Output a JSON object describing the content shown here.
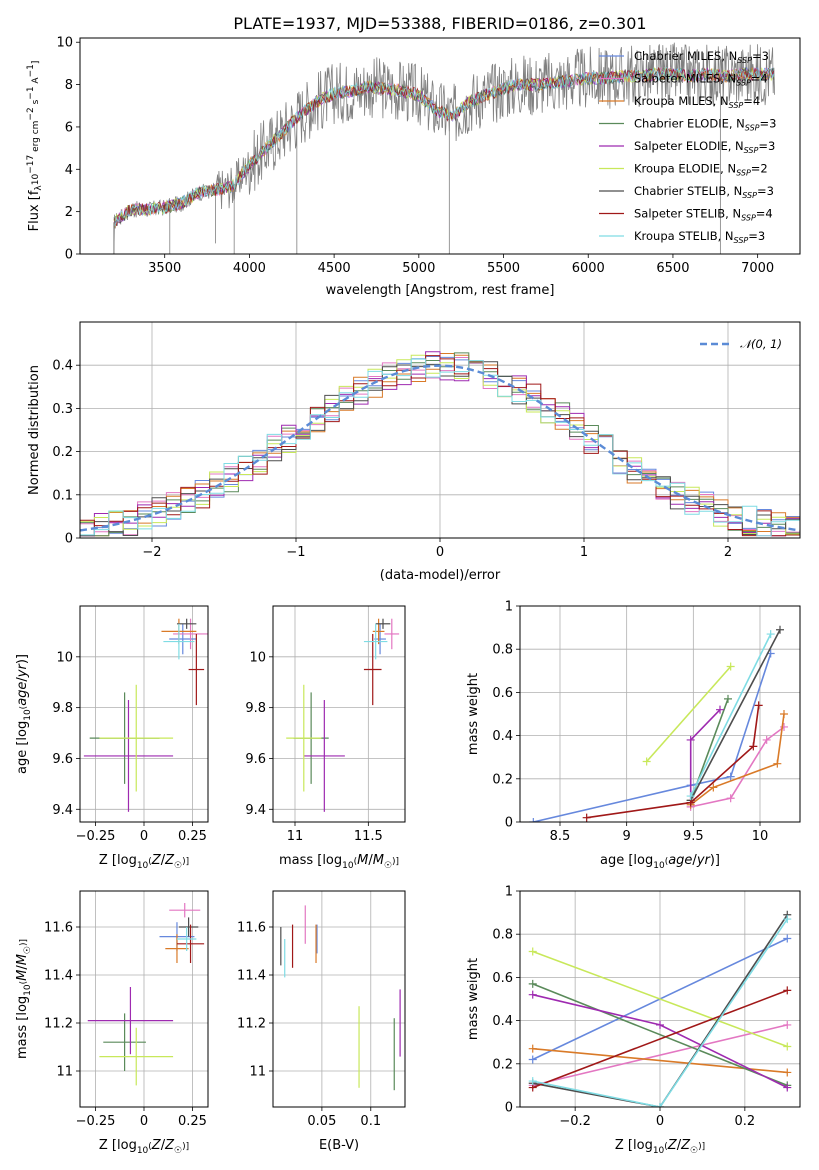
{
  "title": "PLATE=1937, MJD=53388, FIBERID=0186, z=0.301",
  "models": [
    {
      "name": "Chabrier MILES",
      "nssp": "3",
      "color": "#6688dd"
    },
    {
      "name": "Salpeter MILES",
      "nssp": "4",
      "color": "#e377c2"
    },
    {
      "name": "Kroupa MILES",
      "nssp": "4",
      "color": "#d97a28"
    },
    {
      "name": "Chabrier ELODIE",
      "nssp": "3",
      "color": "#5a8a5a"
    },
    {
      "name": "Salpeter ELODIE",
      "nssp": "3",
      "color": "#9e2ab0"
    },
    {
      "name": "Kroupa ELODIE",
      "nssp": "2",
      "color": "#c8e85a"
    },
    {
      "name": "Chabrier STELIB",
      "nssp": "3",
      "color": "#4d4d4d"
    },
    {
      "name": "Salpeter STELIB",
      "nssp": "4",
      "color": "#a01818"
    },
    {
      "name": "Kroupa STELIB",
      "nssp": "3",
      "color": "#7fdce4"
    }
  ],
  "chart_data": [
    {
      "type": "line",
      "name": "spectrum",
      "xlabel": "wavelength [Angstrom, rest frame]",
      "ylabel": "Flux [f_λ 10^-17 erg cm^-2 s^-1 A^-1]",
      "xlim": [
        3000,
        7250
      ],
      "ylim": [
        0,
        10.2
      ],
      "xticks": [
        3500,
        4000,
        4500,
        5000,
        5500,
        6000,
        6500,
        7000
      ],
      "yticks": [
        0,
        2,
        4,
        6,
        8,
        10
      ],
      "x": [
        3200,
        3300,
        3400,
        3500,
        3600,
        3700,
        3800,
        3900,
        4000,
        4100,
        4200,
        4300,
        4400,
        4500,
        4600,
        4700,
        4800,
        4900,
        5000,
        5100,
        5200,
        5300,
        5400,
        5500,
        5600,
        5700,
        5800,
        5900,
        6000,
        6100,
        6200,
        6300,
        6400,
        6500,
        6600,
        6700,
        6800,
        6900,
        7000,
        7100
      ],
      "y": [
        1.5,
        2.1,
        2.1,
        2.2,
        2.4,
        2.9,
        3.0,
        3.2,
        4.2,
        5.0,
        5.8,
        6.6,
        7.2,
        7.6,
        7.7,
        7.9,
        7.8,
        7.7,
        7.5,
        6.8,
        6.5,
        7.2,
        7.5,
        7.8,
        8.0,
        8.0,
        8.1,
        8.2,
        8.3,
        8.3,
        8.4,
        8.4,
        8.5,
        8.5,
        8.4,
        8.5,
        8.4,
        8.5,
        8.5,
        8.5
      ],
      "legend": "upper right"
    },
    {
      "type": "line",
      "name": "residual-distribution",
      "xlabel": "(data-model)/error",
      "ylabel": "Normed distribution",
      "xlim": [
        -2.5,
        2.5
      ],
      "ylim": [
        0,
        0.5
      ],
      "xticks": [
        -2,
        -1,
        0,
        1,
        2
      ],
      "yticks": [
        0.0,
        0.1,
        0.2,
        0.3,
        0.4
      ],
      "grid": true,
      "reference_curve": "𝒩(0, 1)",
      "bin_width": 0.1,
      "legend": "upper right"
    },
    {
      "type": "scatter",
      "name": "age-vs-Z",
      "xlabel": "Z [log10(Z/Z☉)]",
      "ylabel": "age  [log10(age/yr)]",
      "xlim": [
        -0.33,
        0.33
      ],
      "ylim": [
        9.35,
        10.2
      ],
      "xticks": [
        -0.25,
        0.0,
        0.25
      ],
      "yticks": [
        9.4,
        9.6,
        9.8,
        10.0
      ],
      "grid": true,
      "points": [
        {
          "model": 0,
          "x": 0.2,
          "xerr": 0.07,
          "y": 10.07,
          "yerr": 0.06
        },
        {
          "model": 1,
          "x": 0.24,
          "xerr": 0.09,
          "y": 10.09,
          "yerr": 0.06
        },
        {
          "model": 2,
          "x": 0.18,
          "xerr": 0.09,
          "y": 10.1,
          "yerr": 0.05
        },
        {
          "model": 3,
          "x": -0.1,
          "xerr": 0.18,
          "y": 9.68,
          "yerr": 0.18
        },
        {
          "model": 4,
          "x": -0.08,
          "xerr": 0.23,
          "y": 9.61,
          "yerr": 0.22
        },
        {
          "model": 5,
          "x": -0.04,
          "xerr": 0.19,
          "y": 9.68,
          "yerr": 0.21
        },
        {
          "model": 6,
          "x": 0.22,
          "xerr": 0.05,
          "y": 10.13,
          "yerr": 0.02
        },
        {
          "model": 7,
          "x": 0.27,
          "xerr": 0.04,
          "y": 9.95,
          "yerr": 0.14
        },
        {
          "model": 8,
          "x": 0.18,
          "xerr": 0.08,
          "y": 10.06,
          "yerr": 0.07
        }
      ]
    },
    {
      "type": "scatter",
      "name": "age-vs-mass",
      "xlabel": "mass [log10(M/M☉)]",
      "ylabel": "",
      "xlim": [
        10.85,
        11.75
      ],
      "ylim": [
        9.35,
        10.2
      ],
      "xticks": [
        11.0,
        11.5
      ],
      "yticks": [
        9.4,
        9.6,
        9.8,
        10.0
      ],
      "grid": true,
      "points": [
        {
          "model": 0,
          "x": 11.58,
          "xerr": 0.04,
          "y": 10.07,
          "yerr": 0.06
        },
        {
          "model": 1,
          "x": 11.66,
          "xerr": 0.05,
          "y": 10.09,
          "yerr": 0.06
        },
        {
          "model": 2,
          "x": 11.57,
          "xerr": 0.04,
          "y": 10.1,
          "yerr": 0.05
        },
        {
          "model": 3,
          "x": 11.11,
          "xerr": 0.12,
          "y": 9.68,
          "yerr": 0.18
        },
        {
          "model": 4,
          "x": 11.2,
          "xerr": 0.14,
          "y": 9.61,
          "yerr": 0.22
        },
        {
          "model": 5,
          "x": 11.06,
          "xerr": 0.12,
          "y": 9.68,
          "yerr": 0.21
        },
        {
          "model": 6,
          "x": 11.6,
          "xerr": 0.05,
          "y": 10.13,
          "yerr": 0.02
        },
        {
          "model": 7,
          "x": 11.53,
          "xerr": 0.06,
          "y": 9.95,
          "yerr": 0.14
        },
        {
          "model": 8,
          "x": 11.55,
          "xerr": 0.08,
          "y": 10.06,
          "yerr": 0.07
        }
      ]
    },
    {
      "type": "line",
      "name": "mass-weight-vs-age",
      "xlabel": "age  [log10(age/yr)]",
      "ylabel": "mass weight",
      "xlim": [
        8.2,
        10.3
      ],
      "ylim": [
        0,
        1.0
      ],
      "xticks": [
        8.5,
        9.0,
        9.5,
        10.0
      ],
      "yticks": [
        0.0,
        0.2,
        0.4,
        0.6,
        0.8,
        1.0
      ],
      "grid": true,
      "series": [
        {
          "model": 0,
          "x": [
            8.3,
            9.48,
            9.78,
            10.08
          ],
          "y": [
            0.0,
            0.17,
            0.21,
            0.78
          ]
        },
        {
          "model": 1,
          "x": [
            9.48,
            9.78,
            10.05,
            10.18
          ],
          "y": [
            0.07,
            0.11,
            0.38,
            0.44
          ]
        },
        {
          "model": 2,
          "x": [
            9.48,
            9.65,
            10.13,
            10.18
          ],
          "y": [
            0.08,
            0.16,
            0.27,
            0.5
          ]
        },
        {
          "model": 3,
          "x": [
            9.48,
            9.76
          ],
          "y": [
            0.1,
            0.57
          ]
        },
        {
          "model": 4,
          "x": [
            9.48,
            9.48,
            9.7
          ],
          "y": [
            0.09,
            0.38,
            0.52
          ]
        },
        {
          "model": 5,
          "x": [
            9.15,
            9.78
          ],
          "y": [
            0.28,
            0.72
          ]
        },
        {
          "model": 6,
          "x": [
            9.48,
            10.15
          ],
          "y": [
            0.1,
            0.89
          ]
        },
        {
          "model": 7,
          "x": [
            8.7,
            9.48,
            9.95,
            9.99
          ],
          "y": [
            0.02,
            0.09,
            0.35,
            0.54
          ]
        },
        {
          "model": 8,
          "x": [
            9.48,
            10.08
          ],
          "y": [
            0.12,
            0.87
          ]
        }
      ]
    },
    {
      "type": "scatter",
      "name": "mass-vs-Z",
      "xlabel": "Z [log10(Z/Z☉)]",
      "ylabel": "mass [log10(M/M☉)]",
      "xlim": [
        -0.33,
        0.33
      ],
      "ylim": [
        10.85,
        11.75
      ],
      "xticks": [
        -0.25,
        0.0,
        0.25
      ],
      "yticks": [
        11.0,
        11.2,
        11.4,
        11.6
      ],
      "grid": true,
      "points": [
        {
          "model": 0,
          "x": 0.17,
          "xerr": 0.09,
          "y": 11.56,
          "yerr": 0.06
        },
        {
          "model": 1,
          "x": 0.21,
          "xerr": 0.08,
          "y": 11.67,
          "yerr": 0.03
        },
        {
          "model": 2,
          "x": 0.17,
          "xerr": 0.06,
          "y": 11.51,
          "yerr": 0.06
        },
        {
          "model": 3,
          "x": -0.1,
          "xerr": 0.11,
          "y": 11.12,
          "yerr": 0.12
        },
        {
          "model": 4,
          "x": -0.07,
          "xerr": 0.22,
          "y": 11.21,
          "yerr": 0.14
        },
        {
          "model": 5,
          "x": -0.04,
          "xerr": 0.19,
          "y": 11.06,
          "yerr": 0.12
        },
        {
          "model": 6,
          "x": 0.23,
          "xerr": 0.05,
          "y": 11.6,
          "yerr": 0.04
        },
        {
          "model": 7,
          "x": 0.24,
          "xerr": 0.07,
          "y": 11.53,
          "yerr": 0.08
        },
        {
          "model": 8,
          "x": 0.22,
          "xerr": 0.05,
          "y": 11.55,
          "yerr": 0.05
        }
      ]
    },
    {
      "type": "scatter",
      "name": "mass-vs-ebv",
      "xlabel": "E(B-V)",
      "ylabel": "",
      "xlim": [
        0.0,
        0.135
      ],
      "ylim": [
        10.85,
        11.75
      ],
      "xticks": [
        0.05,
        0.1
      ],
      "yticks": [
        11.0,
        11.2,
        11.4,
        11.6
      ],
      "grid": true,
      "points": [
        {
          "model": 0,
          "x": 0.045,
          "y": 11.55,
          "yerr": 0.06
        },
        {
          "model": 1,
          "x": 0.033,
          "y": 11.61,
          "yerr": 0.08
        },
        {
          "model": 2,
          "x": 0.044,
          "y": 11.53,
          "yerr": 0.08
        },
        {
          "model": 3,
          "x": 0.124,
          "y": 11.07,
          "yerr": 0.15
        },
        {
          "model": 4,
          "x": 0.13,
          "y": 11.2,
          "yerr": 0.14
        },
        {
          "model": 5,
          "x": 0.088,
          "y": 11.1,
          "yerr": 0.17
        },
        {
          "model": 6,
          "x": 0.008,
          "y": 11.52,
          "yerr": 0.08
        },
        {
          "model": 7,
          "x": 0.02,
          "y": 11.52,
          "yerr": 0.09
        },
        {
          "model": 8,
          "x": 0.012,
          "y": 11.47,
          "yerr": 0.08
        }
      ]
    },
    {
      "type": "line",
      "name": "mass-weight-vs-Z",
      "xlabel": "Z [log10(Z/Z☉)]",
      "ylabel": "mass weight",
      "xlim": [
        -0.33,
        0.33
      ],
      "ylim": [
        0,
        1.0
      ],
      "xticks": [
        -0.2,
        0.0,
        0.2
      ],
      "yticks": [
        0.0,
        0.2,
        0.4,
        0.6,
        0.8,
        1.0
      ],
      "grid": true,
      "series": [
        {
          "model": 0,
          "x": [
            -0.3,
            0.3
          ],
          "y": [
            0.22,
            0.78
          ]
        },
        {
          "model": 1,
          "x": [
            -0.3,
            0.3
          ],
          "y": [
            0.1,
            0.38
          ]
        },
        {
          "model": 2,
          "x": [
            -0.3,
            0.3
          ],
          "y": [
            0.27,
            0.16
          ]
        },
        {
          "model": 3,
          "x": [
            -0.3,
            0.3
          ],
          "y": [
            0.57,
            0.1
          ]
        },
        {
          "model": 4,
          "x": [
            -0.3,
            0.0,
            0.3
          ],
          "y": [
            0.52,
            0.38,
            0.09
          ]
        },
        {
          "model": 5,
          "x": [
            -0.3,
            0.3
          ],
          "y": [
            0.72,
            0.28
          ]
        },
        {
          "model": 6,
          "x": [
            -0.3,
            0.0,
            0.3
          ],
          "y": [
            0.11,
            0.0,
            0.89
          ]
        },
        {
          "model": 7,
          "x": [
            -0.3,
            0.3
          ],
          "y": [
            0.09,
            0.54
          ]
        },
        {
          "model": 8,
          "x": [
            -0.3,
            0.0,
            0.3
          ],
          "y": [
            0.12,
            0.0,
            0.87
          ]
        }
      ]
    }
  ]
}
